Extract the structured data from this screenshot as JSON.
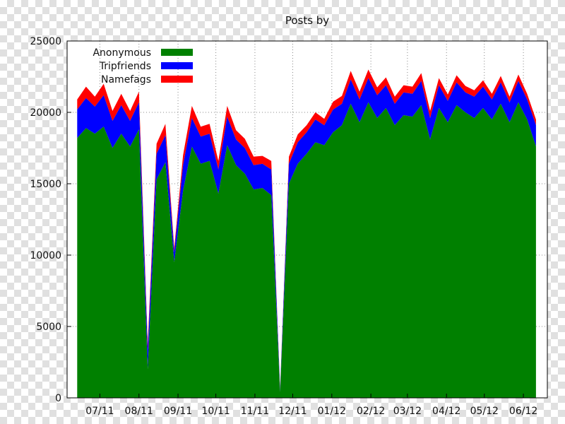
{
  "chart_data": {
    "type": "area",
    "title": "Posts by",
    "stacked": true,
    "ylim": [
      0,
      25000
    ],
    "y_ticks": [
      0,
      5000,
      10000,
      15000,
      20000,
      25000
    ],
    "x_range": [
      "2011-06",
      "2012-06"
    ],
    "x_ticks": [
      "07/11",
      "08/11",
      "09/11",
      "10/11",
      "11/11",
      "12/11",
      "01/12",
      "02/12",
      "03/12",
      "04/12",
      "05/12",
      "06/12"
    ],
    "grid": true,
    "legend_position": "top-left",
    "series": [
      {
        "name": "Anonymous",
        "color": "#008000",
        "x": [
          "2011-06-13",
          "2011-06-20",
          "2011-06-27",
          "2011-07-04",
          "2011-07-11",
          "2011-07-18",
          "2011-07-25",
          "2011-08-01",
          "2011-08-08",
          "2011-08-15",
          "2011-08-22",
          "2011-08-29",
          "2011-09-05",
          "2011-09-12",
          "2011-09-19",
          "2011-09-26",
          "2011-10-03",
          "2011-10-10",
          "2011-10-17",
          "2011-10-24",
          "2011-10-31",
          "2011-11-07",
          "2011-11-14",
          "2011-11-21",
          "2011-11-28",
          "2011-12-05",
          "2011-12-12",
          "2011-12-19",
          "2011-12-26",
          "2012-01-02",
          "2012-01-09",
          "2012-01-16",
          "2012-01-23",
          "2012-01-30",
          "2012-02-06",
          "2012-02-13",
          "2012-02-20",
          "2012-02-27",
          "2012-03-05",
          "2012-03-12",
          "2012-03-19",
          "2012-03-26",
          "2012-04-02",
          "2012-04-09",
          "2012-04-16",
          "2012-04-23",
          "2012-04-30",
          "2012-05-07",
          "2012-05-14",
          "2012-05-21",
          "2012-05-28",
          "2012-06-04",
          "2012-06-11"
        ],
        "values": [
          18200,
          18900,
          18500,
          19000,
          17500,
          18500,
          17600,
          18800,
          2000,
          15300,
          16500,
          9500,
          14500,
          17600,
          16400,
          16600,
          14300,
          17700,
          16300,
          15700,
          14600,
          14700,
          14200,
          400,
          15000,
          16400,
          17100,
          17900,
          17700,
          18600,
          19100,
          20600,
          19300,
          20700,
          19600,
          20300,
          19100,
          19800,
          19700,
          20500,
          18100,
          20300,
          19300,
          20500,
          20000,
          19600,
          20300,
          19500,
          20600,
          19300,
          20700,
          19500,
          17600
        ]
      },
      {
        "name": "Tripfriends",
        "color": "#0000ff",
        "x": [
          "2011-06-13",
          "2011-06-20",
          "2011-06-27",
          "2011-07-04",
          "2011-07-11",
          "2011-07-18",
          "2011-07-25",
          "2011-08-01",
          "2011-08-08",
          "2011-08-15",
          "2011-08-22",
          "2011-08-29",
          "2011-09-05",
          "2011-09-12",
          "2011-09-19",
          "2011-09-26",
          "2011-10-03",
          "2011-10-10",
          "2011-10-17",
          "2011-10-24",
          "2011-10-31",
          "2011-11-07",
          "2011-11-14",
          "2011-11-21",
          "2011-11-28",
          "2011-12-05",
          "2011-12-12",
          "2011-12-19",
          "2011-12-26",
          "2012-01-02",
          "2012-01-09",
          "2012-01-16",
          "2012-01-23",
          "2012-01-30",
          "2012-02-06",
          "2012-02-13",
          "2012-02-20",
          "2012-02-27",
          "2012-03-05",
          "2012-03-12",
          "2012-03-19",
          "2012-03-26",
          "2012-04-02",
          "2012-04-09",
          "2012-04-16",
          "2012-04-23",
          "2012-04-30",
          "2012-05-07",
          "2012-05-14",
          "2012-05-21",
          "2012-05-28",
          "2012-06-04",
          "2012-06-11"
        ],
        "values": [
          2000,
          2100,
          1900,
          2200,
          1900,
          2000,
          1800,
          1900,
          1300,
          1800,
          1900,
          700,
          1800,
          2000,
          1900,
          1900,
          1700,
          2000,
          1800,
          1800,
          1700,
          1700,
          1800,
          200,
          1400,
          1500,
          1500,
          1600,
          1400,
          1600,
          1500,
          1700,
          1600,
          1700,
          1600,
          1600,
          1500,
          1600,
          1600,
          1700,
          1500,
          1600,
          1500,
          1600,
          1400,
          1500,
          1500,
          1400,
          1500,
          1400,
          1500,
          1400,
          1500
        ]
      },
      {
        "name": "Namefags",
        "color": "#ff0000",
        "x": [
          "2011-06-13",
          "2011-06-20",
          "2011-06-27",
          "2011-07-04",
          "2011-07-11",
          "2011-07-18",
          "2011-07-25",
          "2011-08-01",
          "2011-08-08",
          "2011-08-15",
          "2011-08-22",
          "2011-08-29",
          "2011-09-05",
          "2011-09-12",
          "2011-09-19",
          "2011-09-26",
          "2011-10-03",
          "2011-10-10",
          "2011-10-17",
          "2011-10-24",
          "2011-10-31",
          "2011-11-07",
          "2011-11-14",
          "2011-11-21",
          "2011-11-28",
          "2011-12-05",
          "2011-12-12",
          "2011-12-19",
          "2011-12-26",
          "2012-01-02",
          "2012-01-09",
          "2012-01-16",
          "2012-01-23",
          "2012-01-30",
          "2012-02-06",
          "2012-02-13",
          "2012-02-20",
          "2012-02-27",
          "2012-03-05",
          "2012-03-12",
          "2012-03-19",
          "2012-03-26",
          "2012-04-02",
          "2012-04-09",
          "2012-04-16",
          "2012-04-23",
          "2012-04-30",
          "2012-05-07",
          "2012-05-14",
          "2012-05-21",
          "2012-05-28",
          "2012-06-04",
          "2012-06-11"
        ],
        "values": [
          700,
          800,
          700,
          800,
          700,
          800,
          700,
          750,
          500,
          700,
          800,
          300,
          700,
          850,
          700,
          700,
          600,
          750,
          650,
          650,
          600,
          550,
          600,
          100,
          500,
          550,
          500,
          500,
          450,
          550,
          550,
          600,
          550,
          600,
          550,
          550,
          500,
          500,
          500,
          550,
          500,
          500,
          450,
          500,
          450,
          450,
          450,
          400,
          450,
          400,
          450,
          400,
          400
        ]
      }
    ]
  }
}
